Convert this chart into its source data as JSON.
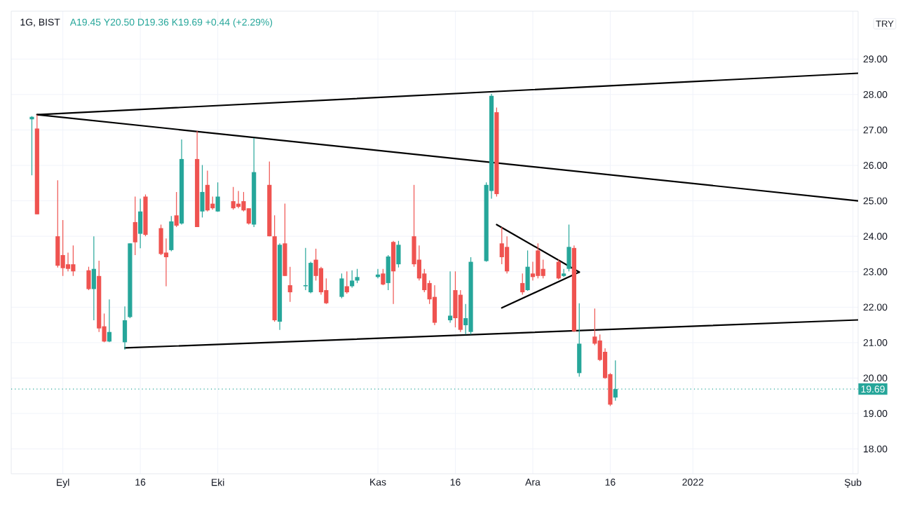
{
  "chart_data": {
    "type": "candlestick",
    "title": "1G, BIST",
    "subtitle": "A19.45 Y20.50 D19.36 K19.69 +0.44 (+2.29%)",
    "x": [
      "2021-08-26",
      "2021-08-27",
      "2021-08-31",
      "2021-09-01",
      "2021-09-02",
      "2021-09-03",
      "2021-09-06",
      "2021-09-07",
      "2021-09-08",
      "2021-09-09",
      "2021-09-10",
      "2021-09-13",
      "2021-09-14",
      "2021-09-15",
      "2021-09-16",
      "2021-09-17",
      "2021-09-20",
      "2021-09-21",
      "2021-09-22",
      "2021-09-23",
      "2021-09-24",
      "2021-09-27",
      "2021-09-28",
      "2021-09-29",
      "2021-09-30",
      "2021-10-01",
      "2021-10-04",
      "2021-10-05",
      "2021-10-06",
      "2021-10-07",
      "2021-10-08",
      "2021-10-11",
      "2021-10-12",
      "2021-10-13",
      "2021-10-14",
      "2021-10-15",
      "2021-10-18",
      "2021-10-19",
      "2021-10-20",
      "2021-10-21",
      "2021-10-22",
      "2021-10-25",
      "2021-10-26",
      "2021-10-27",
      "2021-10-28",
      "2021-11-01",
      "2021-11-02",
      "2021-11-03",
      "2021-11-04",
      "2021-11-05",
      "2021-11-08",
      "2021-11-09",
      "2021-11-10",
      "2021-11-11",
      "2021-11-12",
      "2021-11-15",
      "2021-11-16",
      "2021-11-17",
      "2021-11-18",
      "2021-11-19",
      "2021-11-22",
      "2021-11-23",
      "2021-11-24",
      "2021-11-25",
      "2021-11-26",
      "2021-11-29",
      "2021-11-30",
      "2021-12-01",
      "2021-12-02",
      "2021-12-03",
      "2021-12-06",
      "2021-12-07",
      "2021-12-08",
      "2021-12-09",
      "2021-12-10",
      "2021-12-13",
      "2021-12-14",
      "2021-12-15",
      "2021-12-16",
      "2021-12-17"
    ],
    "ohlc": [
      [
        27.3,
        27.39,
        25.72,
        27.37
      ],
      [
        27.04,
        27.43,
        24.62,
        24.62
      ],
      [
        24.0,
        25.58,
        23.12,
        23.17
      ],
      [
        23.47,
        24.46,
        22.88,
        23.1
      ],
      [
        23.21,
        23.54,
        23.01,
        23.08
      ],
      [
        23.21,
        23.74,
        22.88,
        23.01
      ],
      [
        23.04,
        23.14,
        22.48,
        22.51
      ],
      [
        22.51,
        24.0,
        21.63,
        23.08
      ],
      [
        22.88,
        23.31,
        21.3,
        21.4
      ],
      [
        21.46,
        21.82,
        21.01,
        21.03
      ],
      [
        21.03,
        22.22,
        21.01,
        21.3
      ],
      [
        21.01,
        22.02,
        20.8,
        21.63
      ],
      [
        21.72,
        23.8,
        21.69,
        23.8
      ],
      [
        24.4,
        25.12,
        23.47,
        23.83
      ],
      [
        24.07,
        25.06,
        23.66,
        24.7
      ],
      [
        25.12,
        25.18,
        24.0,
        24.04
      ],
      [
        24.23,
        24.33,
        23.47,
        23.5
      ],
      [
        23.54,
        23.94,
        22.59,
        23.41
      ],
      [
        23.61,
        24.57,
        23.58,
        24.42
      ],
      [
        24.59,
        25.25,
        24.26,
        24.3
      ],
      [
        24.36,
        26.73,
        24.33,
        26.18
      ],
      [
        26.18,
        26.97,
        24.26,
        24.26
      ],
      [
        24.7,
        26.01,
        24.53,
        25.25
      ],
      [
        25.45,
        25.85,
        24.7,
        24.73
      ],
      [
        24.92,
        25.12,
        24.75,
        24.79
      ],
      [
        24.7,
        25.52,
        24.69,
        25.12
      ],
      [
        24.99,
        25.39,
        24.75,
        24.79
      ],
      [
        24.92,
        25.28,
        24.79,
        24.83
      ],
      [
        24.99,
        25.25,
        24.7,
        24.73
      ],
      [
        24.79,
        24.79,
        24.33,
        24.36
      ],
      [
        24.33,
        26.77,
        24.26,
        25.81
      ],
      [
        25.45,
        26.11,
        24.0,
        24.0
      ],
      [
        24.0,
        24.59,
        21.59,
        21.63
      ],
      [
        21.59,
        23.8,
        21.36,
        23.76
      ],
      [
        23.8,
        24.92,
        22.88,
        22.88
      ],
      [
        22.62,
        23.14,
        22.15,
        22.42
      ],
      [
        22.59,
        23.67,
        22.48,
        22.62
      ],
      [
        22.42,
        23.28,
        22.39,
        23.25
      ],
      [
        23.34,
        23.65,
        22.75,
        22.88
      ],
      [
        23.1,
        23.14,
        22.35,
        22.42
      ],
      [
        22.48,
        22.81,
        22.09,
        22.11
      ],
      [
        22.29,
        22.95,
        22.25,
        22.81
      ],
      [
        22.59,
        23.01,
        22.38,
        22.42
      ],
      [
        22.59,
        23.04,
        22.55,
        22.75
      ],
      [
        22.75,
        23.08,
        22.68,
        22.85
      ],
      [
        22.85,
        23.08,
        22.81,
        22.92
      ],
      [
        22.95,
        23.08,
        22.62,
        22.64
      ],
      [
        22.68,
        23.47,
        22.48,
        23.43
      ],
      [
        23.84,
        23.87,
        22.09,
        23.01
      ],
      [
        23.21,
        23.87,
        23.12,
        23.76
      ],
      [
        24.0,
        25.45,
        23.14,
        23.21
      ],
      [
        23.34,
        23.74,
        22.75,
        22.81
      ],
      [
        22.95,
        23.08,
        22.42,
        22.48
      ],
      [
        22.68,
        22.75,
        22.09,
        22.22
      ],
      [
        22.29,
        22.62,
        21.49,
        21.56
      ],
      [
        21.63,
        23.01,
        21.56,
        21.76
      ],
      [
        22.48,
        23.01,
        21.43,
        21.69
      ],
      [
        22.35,
        22.48,
        21.3,
        21.36
      ],
      [
        21.49,
        22.09,
        21.23,
        21.69
      ],
      [
        21.3,
        23.41,
        21.23,
        23.28
      ],
      [
        23.3,
        25.52,
        23.28,
        25.45
      ],
      [
        25.28,
        28.02,
        25.06,
        27.96
      ],
      [
        27.5,
        27.63,
        25.12,
        25.19
      ],
      [
        23.8,
        24.26,
        23.21,
        23.41
      ],
      [
        23.7,
        24.0,
        22.95,
        23.01
      ],
      [
        22.68,
        22.95,
        22.35,
        22.42
      ],
      [
        22.48,
        23.6,
        22.46,
        23.14
      ],
      [
        22.95,
        23.28,
        22.75,
        22.85
      ],
      [
        23.6,
        23.8,
        22.81,
        22.88
      ],
      [
        23.08,
        23.34,
        22.81,
        22.88
      ],
      [
        23.28,
        23.34,
        22.78,
        22.81
      ],
      [
        22.88,
        23.08,
        22.85,
        22.95
      ],
      [
        23.08,
        24.33,
        23.01,
        23.7
      ],
      [
        23.67,
        23.74,
        21.3,
        21.32
      ],
      [
        20.14,
        22.11,
        20.04,
        20.97
      ],
      [
        21.17,
        21.96,
        20.93,
        20.97
      ],
      [
        21.06,
        21.23,
        20.48,
        20.51
      ],
      [
        20.74,
        20.84,
        19.98,
        20.0
      ],
      [
        20.11,
        20.14,
        19.21,
        19.25
      ],
      [
        19.45,
        20.5,
        19.36,
        19.69
      ]
    ],
    "colors": [
      "#26a69a",
      "#ef5350",
      "#ef5350",
      "#ef5350",
      "#ef5350",
      "#ef5350",
      "#ef5350",
      "#26a69a",
      "#ef5350",
      "#ef5350",
      "#26a69a",
      "#26a69a",
      "#26a69a",
      "#ef5350",
      "#26a69a",
      "#ef5350",
      "#ef5350",
      "#ef5350",
      "#26a69a",
      "#ef5350",
      "#26a69a",
      "#ef5350",
      "#26a69a",
      "#ef5350",
      "#ef5350",
      "#26a69a",
      "#ef5350",
      "#ef5350",
      "#ef5350",
      "#ef5350",
      "#26a69a",
      "#ef5350",
      "#ef5350",
      "#26a69a",
      "#ef5350",
      "#ef5350",
      "#26a69a",
      "#26a69a",
      "#ef5350",
      "#ef5350",
      "#ef5350",
      "#26a69a",
      "#ef5350",
      "#26a69a",
      "#26a69a",
      "#26a69a",
      "#ef5350",
      "#26a69a",
      "#ef5350",
      "#26a69a",
      "#ef5350",
      "#ef5350",
      "#ef5350",
      "#ef5350",
      "#ef5350",
      "#26a69a",
      "#ef5350",
      "#ef5350",
      "#26a69a",
      "#26a69a",
      "#26a69a",
      "#26a69a",
      "#ef5350",
      "#ef5350",
      "#ef5350",
      "#ef5350",
      "#26a69a",
      "#ef5350",
      "#ef5350",
      "#ef5350",
      "#ef5350",
      "#26a69a",
      "#26a69a",
      "#ef5350",
      "#26a69a",
      "#ef5350",
      "#ef5350",
      "#ef5350",
      "#ef5350",
      "#26a69a"
    ],
    "series": [
      {
        "type": "line",
        "color": "#000000",
        "x": [
          "2021-08-27",
          "2022-02-02"
        ],
        "values": [
          27.43,
          28.6
        ]
      },
      {
        "type": "line",
        "color": "#000000",
        "x": [
          "2021-08-27",
          "2022-02-02"
        ],
        "values": [
          27.43,
          25.0
        ]
      },
      {
        "type": "line",
        "color": "#000000",
        "x": [
          "2021-09-13",
          "2022-02-02"
        ],
        "values": [
          20.85,
          21.64
        ]
      },
      {
        "type": "line",
        "color": "#000000",
        "x": [
          "2021-11-24",
          "2021-12-10"
        ],
        "values": [
          24.33,
          22.99
        ]
      },
      {
        "type": "line",
        "color": "#000000",
        "x": [
          "2021-11-25",
          "2021-12-10"
        ],
        "values": [
          21.98,
          22.99
        ]
      }
    ],
    "xlim": [
      "2021-08-22",
      "2022-02-02"
    ],
    "xticks": [
      {
        "value": "2021-09-01",
        "label": "Eyl"
      },
      {
        "value": "2021-09-16",
        "label": "16"
      },
      {
        "value": "2021-10-01",
        "label": "Eki"
      },
      {
        "value": "2021-11-01",
        "label": "Kas"
      },
      {
        "value": "2021-11-16",
        "label": "16"
      },
      {
        "value": "2021-12-01",
        "label": "Ara"
      },
      {
        "value": "2021-12-16",
        "label": "16"
      },
      {
        "value": "2022-01-01",
        "label": "2022"
      },
      {
        "value": "2022-02-01",
        "label": "Şub"
      }
    ],
    "ylim": [
      17.3,
      30.35
    ],
    "yticks": [
      {
        "value": 18,
        "label": "18.00"
      },
      {
        "value": 19,
        "label": "19.00"
      },
      {
        "value": 20,
        "label": "20.00"
      },
      {
        "value": 21,
        "label": "21.00"
      },
      {
        "value": 22,
        "label": "22.00"
      },
      {
        "value": 23,
        "label": "23.00"
      },
      {
        "value": 24,
        "label": "24.00"
      },
      {
        "value": 25,
        "label": "25.00"
      },
      {
        "value": 26,
        "label": "26.00"
      },
      {
        "value": 27,
        "label": "27.00"
      },
      {
        "value": 28,
        "label": "28.00"
      },
      {
        "value": 29,
        "label": "29.00"
      }
    ],
    "grid": true,
    "ref_lines": [
      {
        "axis": "y",
        "value": 19.69,
        "label": "19.69",
        "color": "#26a69a",
        "line_style": "dotted"
      }
    ],
    "annotations": [
      "TRY"
    ]
  }
}
